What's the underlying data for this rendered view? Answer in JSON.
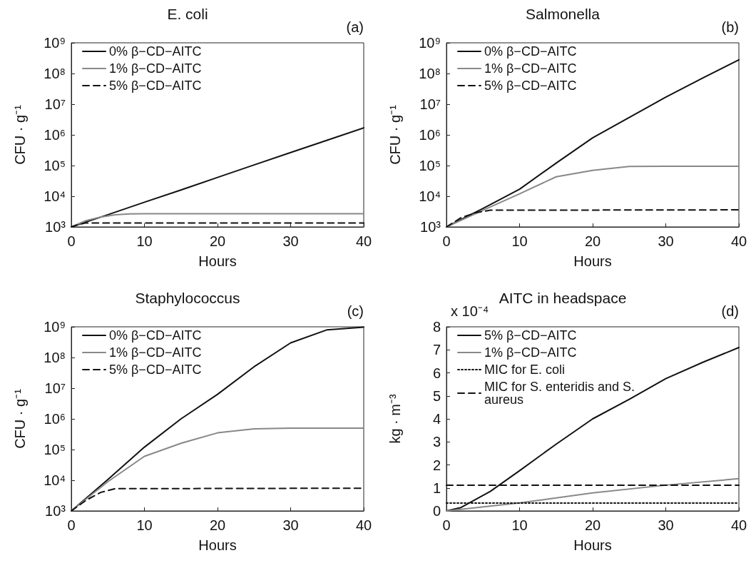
{
  "chart_data": [
    {
      "type": "line",
      "title": "E. coli",
      "xlabel": "Hours",
      "ylabel": "CFU · g⁻¹",
      "annotations": [
        "(a)"
      ],
      "log": true,
      "grid": false,
      "legend": "top left",
      "marker": "none",
      "xlim": [
        0,
        40
      ],
      "xticks": [
        0,
        10,
        20,
        30,
        40
      ],
      "ylim": [
        1000,
        1000000000
      ],
      "yticks": [
        {
          "value": 1000,
          "label": "10³"
        },
        {
          "value": 10000,
          "label": "10⁴"
        },
        {
          "value": 100000,
          "label": "10⁵"
        },
        {
          "value": 1000000,
          "label": "10⁶"
        },
        {
          "value": 10000000,
          "label": "10⁷"
        },
        {
          "value": 100000000,
          "label": "10⁸"
        },
        {
          "value": 1000000000,
          "label": "10⁹"
        }
      ],
      "series": [
        {
          "name": "0% β−CD−AITC",
          "color": "#111111",
          "line_style": "solid",
          "x": [
            0,
            5,
            10,
            15,
            20,
            25,
            30,
            35,
            40
          ],
          "values": [
            1000,
            2500,
            6400,
            16000,
            41000,
            105000,
            265000,
            670000,
            1700000
          ]
        },
        {
          "name": "1% β−CD−AITC",
          "color": "#888888",
          "line_style": "solid",
          "x": [
            0,
            2,
            4,
            6,
            8,
            10,
            20,
            30,
            40
          ],
          "values": [
            1000,
            1600,
            2100,
            2500,
            2650,
            2700,
            2700,
            2700,
            2700
          ]
        },
        {
          "name": "5% β−CD−AITC",
          "color": "#111111",
          "line_style": "dashed",
          "x": [
            0,
            1,
            2,
            3,
            40
          ],
          "values": [
            1000,
            1200,
            1350,
            1350,
            1350
          ]
        }
      ]
    },
    {
      "type": "line",
      "title": "Salmonella",
      "xlabel": "Hours",
      "ylabel": "CFU · g⁻¹",
      "annotations": [
        "(b)"
      ],
      "log": true,
      "grid": false,
      "legend": "top left",
      "marker": "none",
      "xlim": [
        0,
        40
      ],
      "xticks": [
        0,
        10,
        20,
        30,
        40
      ],
      "ylim": [
        1000,
        1000000000
      ],
      "yticks": [
        {
          "value": 1000,
          "label": "10³"
        },
        {
          "value": 10000,
          "label": "10⁴"
        },
        {
          "value": 100000,
          "label": "10⁵"
        },
        {
          "value": 1000000,
          "label": "10⁶"
        },
        {
          "value": 10000000,
          "label": "10⁷"
        },
        {
          "value": 100000000,
          "label": "10⁸"
        },
        {
          "value": 1000000000,
          "label": "10⁹"
        }
      ],
      "series": [
        {
          "name": "0% β−CD−AITC",
          "color": "#111111",
          "line_style": "solid",
          "x": [
            0,
            5,
            10,
            15,
            20,
            25,
            30,
            35,
            40
          ],
          "values": [
            1000,
            4000,
            17000,
            120000,
            800000,
            3700000,
            17000000,
            70000000,
            280000000
          ]
        },
        {
          "name": "1% β−CD−AITC",
          "color": "#888888",
          "line_style": "solid",
          "x": [
            0,
            5,
            10,
            15,
            20,
            25,
            30,
            40
          ],
          "values": [
            1000,
            3500,
            12000,
            43000,
            70000,
            93000,
            95000,
            95000
          ]
        },
        {
          "name": "5% β−CD−AITC",
          "color": "#111111",
          "line_style": "dashed",
          "x": [
            0,
            2,
            4,
            6,
            40
          ],
          "values": [
            1000,
            2000,
            2900,
            3500,
            3600
          ]
        }
      ]
    },
    {
      "type": "line",
      "title": "Staphylococcus",
      "xlabel": "Hours",
      "ylabel": "CFU · g⁻¹",
      "annotations": [
        "(c)"
      ],
      "log": true,
      "grid": false,
      "legend": "top left",
      "marker": "none",
      "xlim": [
        0,
        40
      ],
      "xticks": [
        0,
        10,
        20,
        30,
        40
      ],
      "ylim": [
        1000,
        1000000000
      ],
      "yticks": [
        {
          "value": 1000,
          "label": "10³"
        },
        {
          "value": 10000,
          "label": "10⁴"
        },
        {
          "value": 100000,
          "label": "10⁵"
        },
        {
          "value": 1000000,
          "label": "10⁶"
        },
        {
          "value": 10000000,
          "label": "10⁷"
        },
        {
          "value": 100000000,
          "label": "10⁸"
        },
        {
          "value": 1000000000,
          "label": "10⁹"
        }
      ],
      "series": [
        {
          "name": "0% β−CD−AITC",
          "color": "#111111",
          "line_style": "solid",
          "x": [
            0,
            5,
            10,
            15,
            20,
            25,
            30,
            35,
            40
          ],
          "values": [
            1000,
            10500,
            120000,
            1000000,
            6300000,
            50000000,
            300000000,
            800000000,
            980000000
          ]
        },
        {
          "name": "1% β−CD−AITC",
          "color": "#888888",
          "line_style": "solid",
          "x": [
            0,
            5,
            10,
            15,
            20,
            25,
            30,
            40
          ],
          "values": [
            1000,
            9000,
            60000,
            160000,
            350000,
            470000,
            500000,
            500000
          ]
        },
        {
          "name": "5% β−CD−AITC",
          "color": "#111111",
          "line_style": "dashed",
          "x": [
            0,
            2,
            4,
            6,
            40
          ],
          "values": [
            1000,
            2200,
            4000,
            5300,
            5500
          ]
        }
      ]
    },
    {
      "type": "line",
      "title": "AITC in headspace",
      "xlabel": "Hours",
      "ylabel": "kg · m⁻³",
      "annotations": [
        "(d)",
        "x 10⁻⁴"
      ],
      "grid": false,
      "legend": "top left",
      "marker": "none",
      "xlim": [
        0,
        40
      ],
      "xticks": [
        0,
        10,
        20,
        30,
        40
      ],
      "ylim": [
        0,
        8
      ],
      "yticks": [
        0,
        1,
        2,
        3,
        4,
        5,
        6,
        7,
        8
      ],
      "series": [
        {
          "name": "5% β−CD−AITC",
          "color": "#111111",
          "line_style": "solid",
          "x": [
            0,
            2,
            4,
            6,
            8,
            10,
            15,
            20,
            25,
            30,
            35,
            40
          ],
          "values": [
            0,
            0.15,
            0.5,
            0.85,
            1.3,
            1.75,
            2.9,
            4.0,
            4.85,
            5.75,
            6.45,
            7.1
          ]
        },
        {
          "name": "1% β−CD−AITC",
          "color": "#888888",
          "line_style": "solid",
          "x": [
            0,
            10,
            20,
            30,
            40
          ],
          "values": [
            0,
            0.35,
            0.78,
            1.12,
            1.4
          ]
        },
        {
          "name": "MIC for E. coli",
          "color": "#111111",
          "line_style": "dotted",
          "x": [
            0,
            40
          ],
          "values": [
            0.34,
            0.34
          ]
        },
        {
          "name": "MIC for S. enteridis and S. aureus",
          "color": "#111111",
          "line_style": "dashed",
          "x": [
            0,
            40
          ],
          "values": [
            1.12,
            1.12
          ]
        }
      ]
    }
  ]
}
